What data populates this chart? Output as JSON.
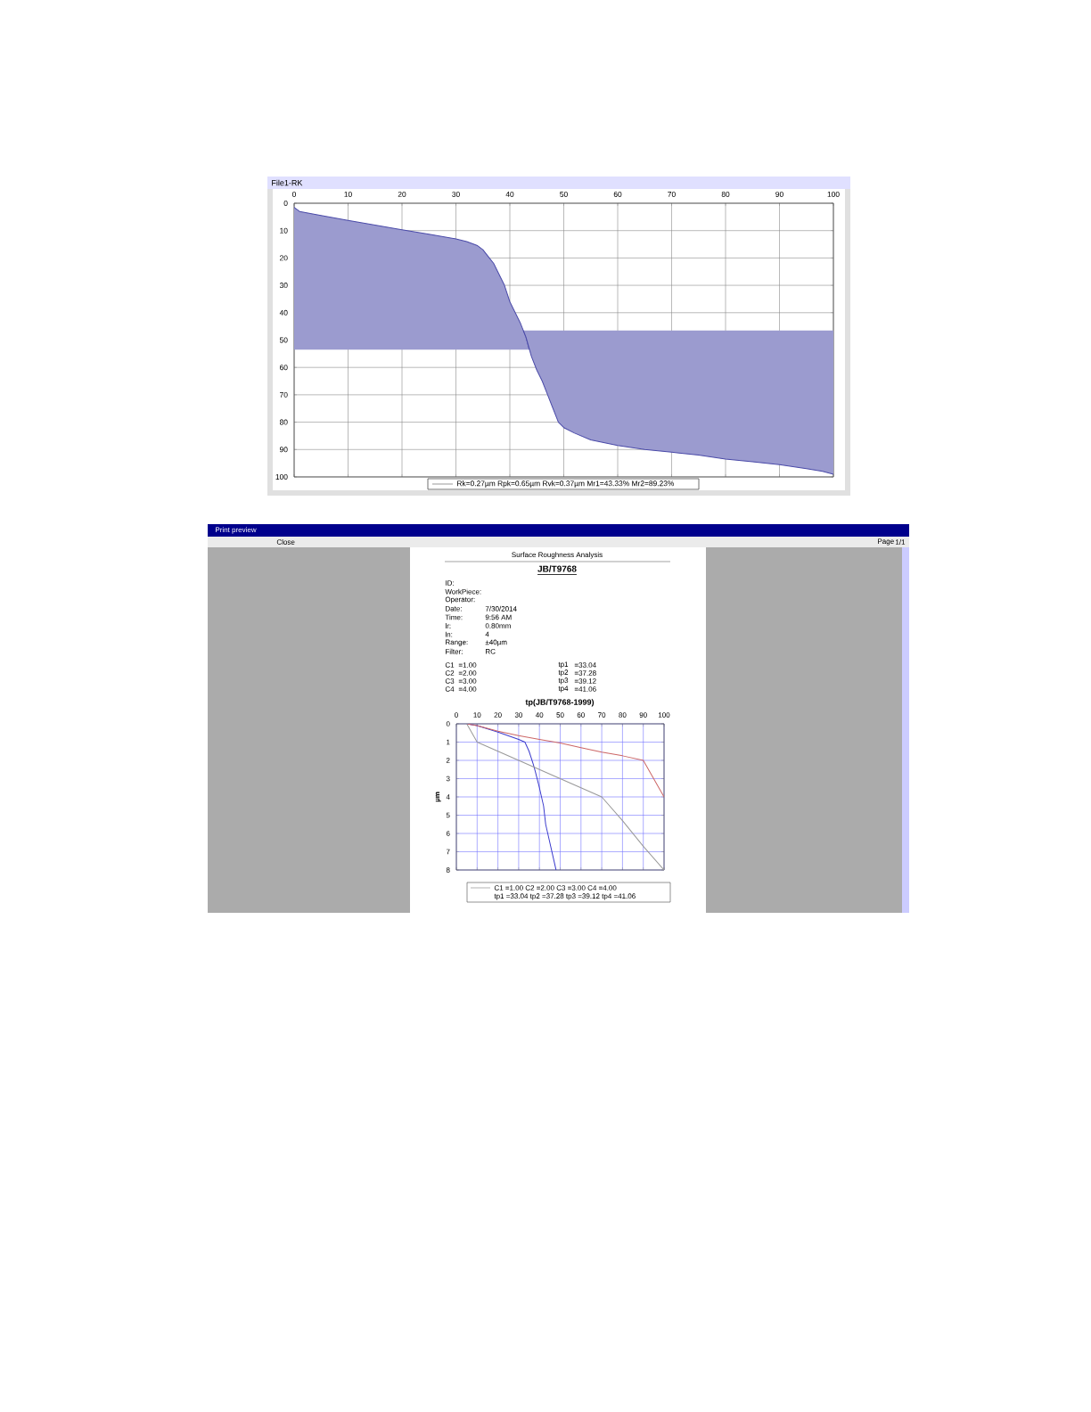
{
  "chart_data": [
    {
      "type": "line",
      "title": "File1-RK",
      "xlim": [
        0,
        100
      ],
      "ylim": [
        100,
        0
      ],
      "xticks": [
        0,
        10,
        20,
        30,
        40,
        50,
        60,
        70,
        80,
        90,
        100
      ],
      "yticks": [
        0,
        10,
        20,
        30,
        40,
        50,
        60,
        70,
        80,
        90,
        100
      ],
      "grid": true,
      "series": [
        {
          "color": "#4a4aa8",
          "x": [
            0,
            1,
            5,
            10,
            15,
            20,
            25,
            30,
            32,
            34,
            35,
            36,
            37,
            38,
            39,
            40,
            41,
            42,
            43,
            43.6
          ],
          "values": [
            1.5,
            3,
            4.5,
            6.3,
            8,
            9.7,
            11.3,
            13,
            14,
            15.5,
            17,
            19.5,
            22,
            26,
            30,
            36,
            40,
            44,
            49,
            53.5
          ],
          "lower": [
            1.5,
            3,
            4.5,
            6.3,
            8,
            9.7,
            11.3,
            13,
            14,
            15.5,
            17,
            19.5,
            22,
            26,
            30,
            36,
            40,
            44,
            49,
            53.5
          ],
          "upper": [
            53.5,
            53.5,
            53.5,
            53.5,
            53.5,
            53.5,
            53.5,
            53.5,
            53.5,
            53.5,
            53.5,
            53.5,
            53.5,
            53.5,
            53.5,
            53.5,
            53.5,
            53.5,
            53.5,
            53.5
          ]
        },
        {
          "color": "#4a4aa8",
          "x": [
            42.5,
            43,
            44,
            45,
            46,
            47,
            48,
            49,
            50,
            52,
            55,
            60,
            65,
            70,
            75,
            80,
            85,
            90,
            95,
            98,
            100
          ],
          "values": [
            46.5,
            49,
            56,
            61,
            65,
            70,
            75,
            80,
            82,
            84,
            86.5,
            88.5,
            90,
            91,
            92,
            93.5,
            94.5,
            95.5,
            97,
            98,
            99
          ],
          "lower": [
            46.5,
            46.5,
            46.5,
            46.5,
            46.5,
            46.5,
            46.5,
            46.5,
            46.5,
            46.5,
            46.5,
            46.5,
            46.5,
            46.5,
            46.5,
            46.5,
            46.5,
            46.5,
            46.5,
            46.5,
            46.5
          ],
          "upper": [
            46.5,
            49,
            56,
            61,
            65,
            70,
            75,
            80,
            82,
            84,
            86.5,
            88.5,
            90,
            91,
            92,
            93.5,
            94.5,
            95.5,
            97,
            98,
            99
          ]
        }
      ],
      "annotations": [
        "Rk=0.27µm   Rpk=0.65µm   Rvk=0.37µm   Mr1=43.33%   Mr2=89.23%"
      ]
    },
    {
      "type": "line",
      "title": "tp(JB/T9768-1999)",
      "ylabel": "µm",
      "xlim": [
        0,
        100
      ],
      "ylim": [
        8,
        0
      ],
      "xticks": [
        0,
        10,
        20,
        30,
        40,
        50,
        60,
        70,
        80,
        90,
        100
      ],
      "yticks": [
        0,
        1,
        2,
        3,
        4,
        5,
        6,
        7,
        8
      ],
      "grid": true,
      "series": [
        {
          "color": "#3a3acc",
          "x": [
            5,
            10,
            20,
            30,
            33,
            35,
            37,
            38,
            40,
            42,
            43,
            45,
            47,
            48
          ],
          "values": [
            0,
            0.1,
            0.45,
            0.85,
            1,
            1.5,
            2.2,
            2.6,
            3.5,
            4.5,
            5.5,
            6.5,
            7.5,
            8
          ]
        },
        {
          "color": "#cc6666",
          "x": [
            5,
            10,
            20,
            30,
            40,
            50,
            60,
            70,
            80,
            90,
            95,
            100
          ],
          "values": [
            0,
            0.1,
            0.4,
            0.65,
            0.85,
            1.05,
            1.3,
            1.55,
            1.75,
            2,
            3,
            4
          ]
        },
        {
          "color": "#999999",
          "x": [
            5,
            10,
            20,
            30,
            40,
            50,
            60,
            70,
            80,
            90,
            100
          ],
          "values": [
            0,
            1,
            1.5,
            2,
            2.5,
            3,
            3.5,
            4,
            5.3,
            6.7,
            8
          ]
        }
      ],
      "annotations": [
        "Print preview",
        "Close",
        "Page",
        "1/1",
        "Surface Roughness Analysis",
        "JB/T9768",
        "ID:",
        "WorkPiece:",
        "Operator:",
        "Date:",
        "7/30/2014",
        "Time:",
        "9:56 AM",
        "lr:",
        "0.80mm",
        "ln:",
        "4",
        "Range:",
        "±40µm",
        "Filter:",
        "RC",
        "C1",
        "=1.00",
        "C2",
        "=2.00",
        "C3",
        "=3.00",
        "C4",
        "=4.00",
        "tp1",
        "=33.04",
        "tp2",
        "=37.28",
        "tp3",
        "=39.12",
        "tp4",
        "=41.06",
        "C1 =1.00   C2 =2.00   C3 =3.00   C4 =4.00",
        "tp1 =33.04   tp2 =37.28   tp3 =39.12   tp4 =41.06"
      ]
    }
  ]
}
